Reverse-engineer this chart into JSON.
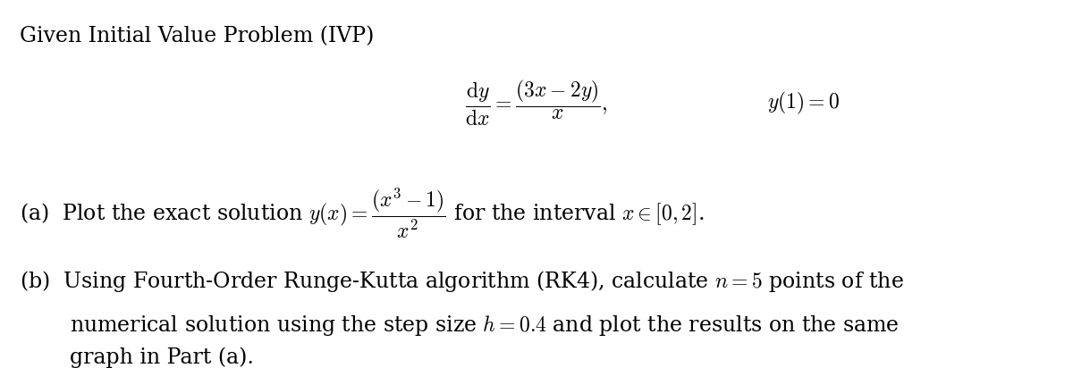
{
  "background_color": "#ffffff",
  "figsize": [
    12.0,
    4.12
  ],
  "dpi": 100,
  "fontsize": 17
}
